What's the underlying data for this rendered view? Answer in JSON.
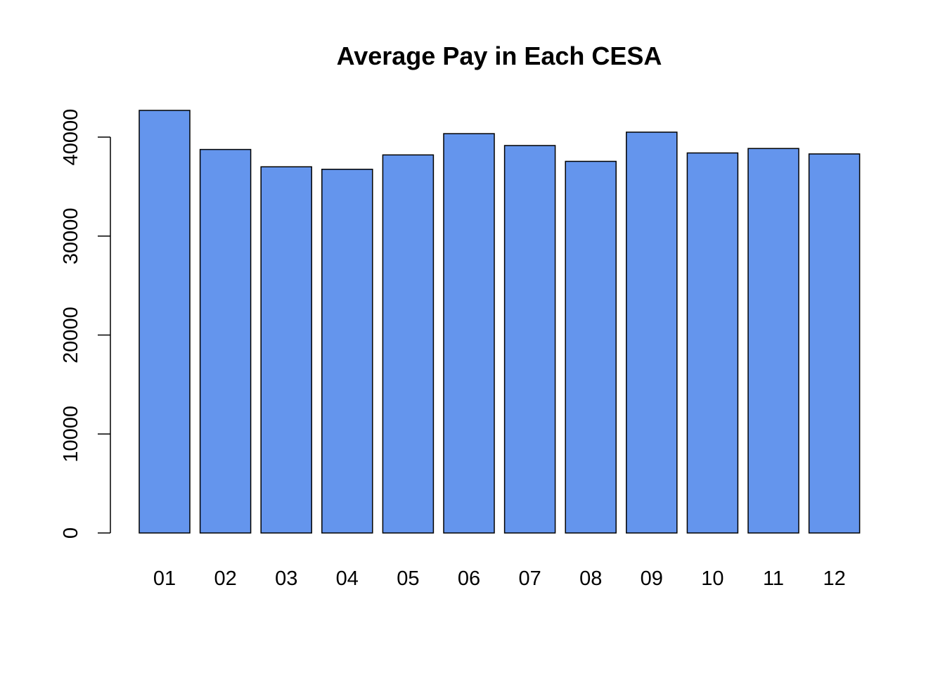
{
  "chart_data": {
    "type": "bar",
    "title": "Average Pay in Each CESA",
    "xlabel": "",
    "ylabel": "",
    "categories": [
      "01",
      "02",
      "03",
      "04",
      "05",
      "06",
      "07",
      "08",
      "09",
      "10",
      "11",
      "12"
    ],
    "values": [
      42700,
      38750,
      37000,
      36750,
      38200,
      40350,
      39150,
      37550,
      40500,
      38400,
      38850,
      38300
    ],
    "ylim": [
      0,
      40000
    ],
    "yticks": [
      0,
      10000,
      20000,
      30000,
      40000
    ],
    "ytick_labels": [
      "0",
      "10000",
      "20000",
      "30000",
      "40000"
    ],
    "bar_color": "#6495ED",
    "border_color": "#000000",
    "grid": false,
    "legend": "none"
  }
}
